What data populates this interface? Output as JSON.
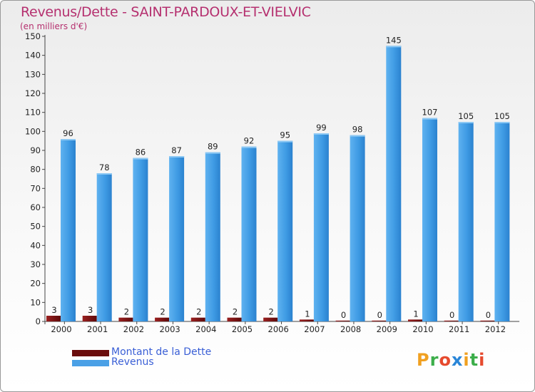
{
  "chart_data": {
    "type": "bar",
    "title": "Revenus/Dette - SAINT-PARDOUX-ET-VIELVIC",
    "subtitle": "(en milliers d'€)",
    "categories": [
      "2000",
      "2001",
      "2002",
      "2003",
      "2004",
      "2005",
      "2006",
      "2007",
      "2008",
      "2009",
      "2010",
      "2011",
      "2012"
    ],
    "series": [
      {
        "name": "Montant de la Dette",
        "color": "#7a1010",
        "values": [
          3,
          3,
          2,
          2,
          2,
          2,
          2,
          1,
          0,
          0,
          1,
          0,
          0
        ]
      },
      {
        "name": "Revenus",
        "color": "#4aa0e6",
        "values": [
          96,
          78,
          86,
          87,
          89,
          92,
          95,
          99,
          98,
          145,
          107,
          105,
          105
        ]
      }
    ],
    "ylim": [
      0,
      150
    ],
    "yticks": [
      0,
      10,
      20,
      30,
      40,
      50,
      60,
      70,
      80,
      90,
      100,
      110,
      120,
      130,
      140,
      150
    ],
    "grid": false,
    "legend_position": "bottom-left"
  },
  "legend": {
    "items": [
      {
        "label": "Montant de la Dette",
        "color": "#6a0d0d"
      },
      {
        "label": "Revenus",
        "color": "#4aa0e6"
      }
    ]
  },
  "logo": {
    "letters": [
      "P",
      "r",
      "o",
      "x",
      "i",
      "t",
      "i"
    ],
    "colors": [
      "#f0a020",
      "#3cae4a",
      "#e64a2e",
      "#2a86d8",
      "#f0a020",
      "#3cae4a",
      "#e64a2e"
    ]
  }
}
